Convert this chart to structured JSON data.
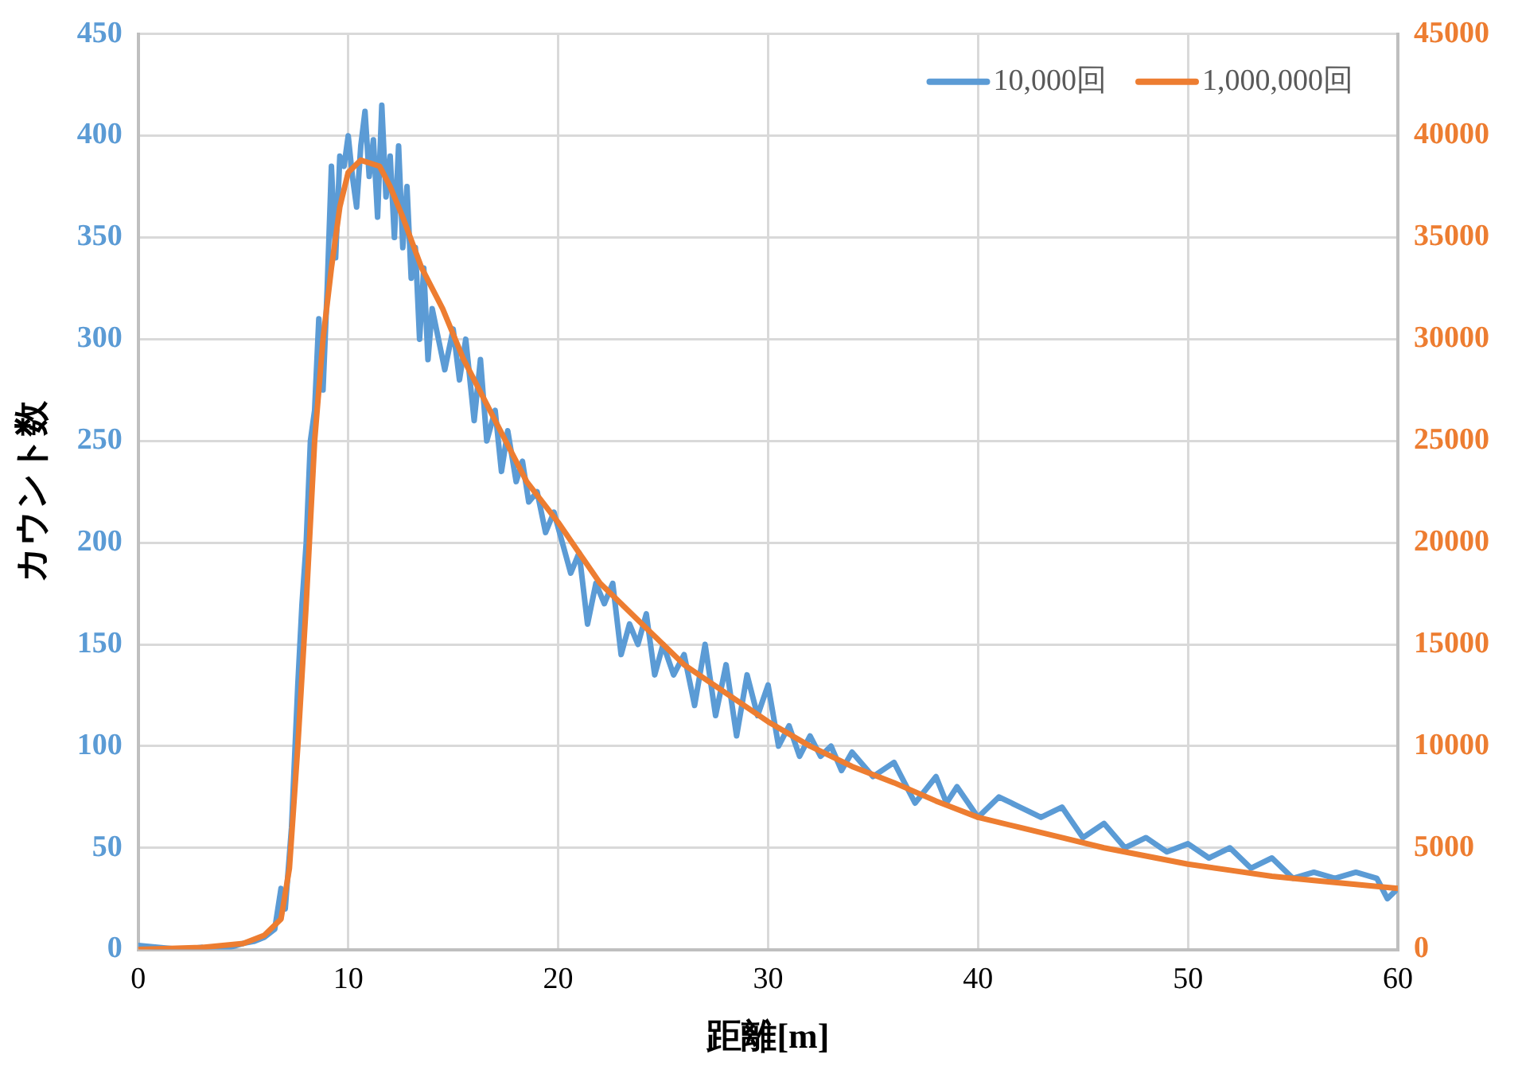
{
  "chart_data": {
    "type": "line",
    "xlabel": "距離[m]",
    "ylabel": "カウント数",
    "xlim": [
      0,
      60
    ],
    "xticks": [
      0,
      10,
      20,
      30,
      40,
      50,
      60
    ],
    "ylim": [
      0,
      450
    ],
    "yticks": [
      0,
      50,
      100,
      150,
      200,
      250,
      300,
      350,
      400,
      450
    ],
    "y2lim": [
      0,
      45000
    ],
    "y2ticks": [
      0,
      5000,
      10000,
      15000,
      20000,
      25000,
      30000,
      35000,
      40000,
      45000
    ],
    "grid": true,
    "legend": "top right",
    "marker": "none",
    "line_style": "solid",
    "series": [
      {
        "name": "10,000回",
        "color": "#5b9bd5",
        "x": [
          0,
          1,
          2,
          3,
          4,
          5,
          5.5,
          6,
          6.5,
          6.8,
          7,
          7.3,
          7.6,
          7.8,
          8,
          8.2,
          8.4,
          8.6,
          8.8,
          9,
          9.2,
          9.4,
          9.6,
          9.8,
          10,
          10.2,
          10.4,
          10.6,
          10.8,
          11,
          11.2,
          11.4,
          11.6,
          11.8,
          12,
          12.2,
          12.4,
          12.6,
          12.8,
          13,
          13.2,
          13.4,
          13.6,
          13.8,
          14,
          14.3,
          14.6,
          15,
          15.3,
          15.6,
          16,
          16.3,
          16.6,
          17,
          17.3,
          17.6,
          18,
          18.3,
          18.6,
          19,
          19.4,
          19.8,
          20.2,
          20.6,
          21,
          21.4,
          21.8,
          22.2,
          22.6,
          23,
          23.4,
          23.8,
          24.2,
          24.6,
          25,
          25.5,
          26,
          26.5,
          27,
          27.5,
          28,
          28.5,
          29,
          29.5,
          30,
          30.5,
          31,
          31.5,
          32,
          32.5,
          33,
          33.5,
          34,
          35,
          36,
          37,
          38,
          38.5,
          39,
          40,
          41,
          42,
          43,
          44,
          45,
          46,
          47,
          48,
          49,
          50,
          51,
          52,
          53,
          54,
          55,
          56,
          57,
          58,
          59,
          59.5,
          60
        ],
        "values": [
          2,
          1,
          0,
          1,
          0,
          3,
          4,
          6,
          10,
          30,
          20,
          60,
          130,
          170,
          200,
          250,
          265,
          310,
          275,
          325,
          385,
          340,
          390,
          385,
          400,
          380,
          365,
          395,
          412,
          380,
          398,
          360,
          415,
          370,
          390,
          350,
          395,
          345,
          375,
          330,
          345,
          300,
          335,
          290,
          315,
          300,
          285,
          305,
          280,
          300,
          260,
          290,
          250,
          265,
          235,
          255,
          230,
          240,
          220,
          225,
          205,
          215,
          200,
          185,
          195,
          160,
          180,
          170,
          180,
          145,
          160,
          150,
          165,
          135,
          150,
          135,
          145,
          120,
          150,
          115,
          140,
          105,
          135,
          115,
          130,
          100,
          110,
          95,
          105,
          95,
          100,
          88,
          97,
          85,
          92,
          72,
          85,
          72,
          80,
          65,
          75,
          70,
          65,
          70,
          55,
          62,
          50,
          55,
          48,
          52,
          45,
          50,
          40,
          45,
          35,
          38,
          35,
          38,
          35,
          25,
          30
        ]
      },
      {
        "name": "1,000,000回",
        "color": "#ed7d31",
        "axis": "y2",
        "x": [
          0,
          3,
          5,
          6,
          6.8,
          7.2,
          7.6,
          8,
          8.4,
          8.8,
          9.2,
          9.6,
          10,
          10.6,
          11.5,
          12,
          12.6,
          13.5,
          14.5,
          15.5,
          16.5,
          17.5,
          18.5,
          20,
          21,
          22,
          23,
          24,
          25,
          26,
          28,
          30,
          32,
          34,
          36,
          38,
          40,
          42,
          44,
          46,
          48,
          50,
          52,
          54,
          56,
          58,
          60
        ],
        "values": [
          0,
          100,
          300,
          700,
          1500,
          4000,
          10000,
          17000,
          25000,
          30000,
          33500,
          36500,
          38200,
          38800,
          38500,
          37500,
          36000,
          33500,
          31500,
          29000,
          27000,
          25000,
          23000,
          21000,
          19500,
          18000,
          17000,
          16000,
          15000,
          14000,
          12600,
          11200,
          10000,
          9000,
          8200,
          7300,
          6500,
          6000,
          5500,
          5000,
          4600,
          4200,
          3900,
          3600,
          3400,
          3200,
          3000
        ]
      }
    ]
  }
}
